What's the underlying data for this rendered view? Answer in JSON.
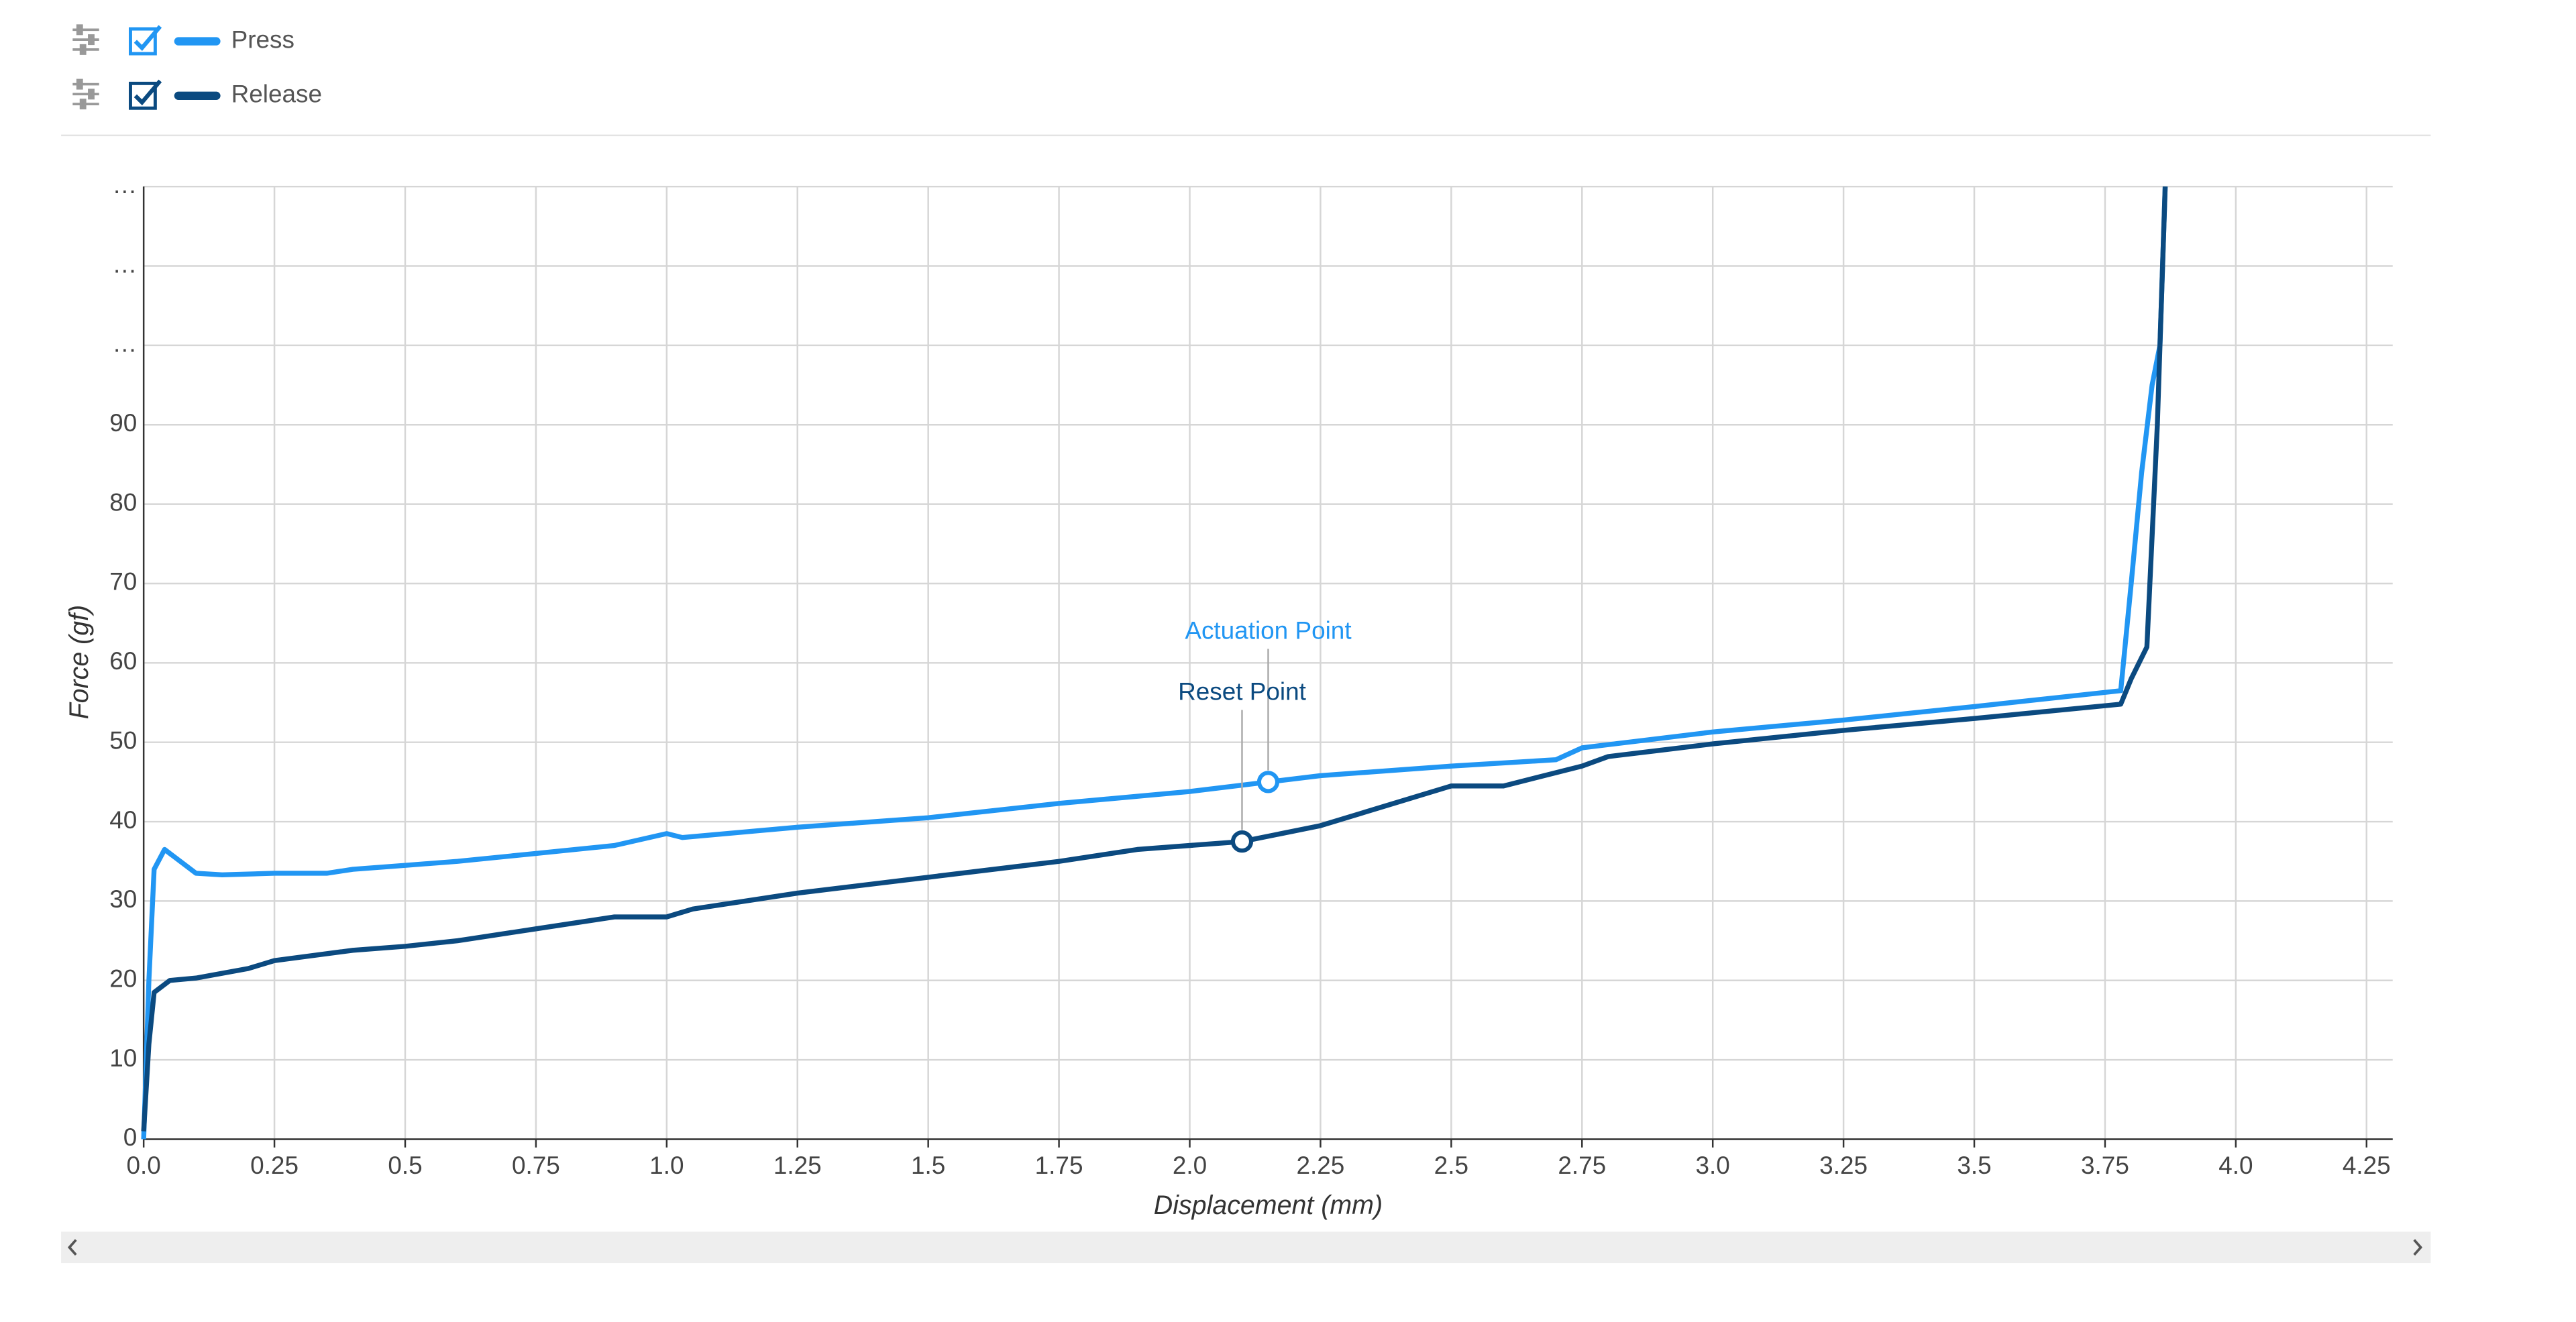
{
  "chart_data": {
    "type": "line",
    "x_label": "Displacement (mm)",
    "y_label": "Force (gf)",
    "xlim": [
      0,
      4.3
    ],
    "ylim": [
      0,
      120
    ],
    "xticks": [
      {
        "value": 0,
        "label": "0.0"
      },
      0.25,
      0.5,
      0.75,
      {
        "value": 1,
        "label": "1.0"
      },
      1.25,
      1.5,
      1.75,
      {
        "value": 2,
        "label": "2.0"
      },
      2.25,
      2.5,
      2.75,
      {
        "value": 3,
        "label": "3.0"
      },
      3.25,
      3.5,
      3.75,
      {
        "value": 4,
        "label": "4.0"
      },
      4.25
    ],
    "yticks": [
      0,
      10,
      20,
      30,
      40,
      50,
      60,
      70,
      80,
      90,
      {
        "value": 100,
        "label": "…"
      },
      {
        "value": 110,
        "label": "…"
      },
      {
        "value": 120,
        "label": "…"
      }
    ],
    "grid": true,
    "series": [
      {
        "name": "Press",
        "color": "#2196f3",
        "x": [
          0,
          0.01,
          0.02,
          0.04,
          0.07,
          0.1,
          0.15,
          0.25,
          0.35,
          0.4,
          0.5,
          0.6,
          0.75,
          0.9,
          1.0,
          1.03,
          1.25,
          1.5,
          1.75,
          2.0,
          2.15,
          2.25,
          2.5,
          2.7,
          2.75,
          3.0,
          3.25,
          3.5,
          3.78,
          3.8,
          3.82,
          3.84,
          3.855,
          3.865
        ],
        "values": [
          0,
          20,
          34,
          36.5,
          35,
          33.5,
          33.3,
          33.5,
          33.5,
          34,
          34.5,
          35,
          36,
          37,
          38.5,
          38,
          39.3,
          40.5,
          42.3,
          43.8,
          45,
          45.8,
          47,
          47.8,
          49.3,
          51.3,
          52.8,
          54.5,
          56.5,
          70,
          84,
          95,
          100,
          120
        ]
      },
      {
        "name": "Release",
        "color": "#0b4a80",
        "x": [
          0,
          0.01,
          0.02,
          0.05,
          0.1,
          0.2,
          0.25,
          0.4,
          0.5,
          0.6,
          0.75,
          0.9,
          1.0,
          1.05,
          1.25,
          1.5,
          1.75,
          1.9,
          2.1,
          2.25,
          2.4,
          2.5,
          2.6,
          2.75,
          2.8,
          2.9,
          3.0,
          3.25,
          3.5,
          3.78,
          3.8,
          3.83,
          3.85,
          3.865
        ],
        "values": [
          1,
          12,
          18.5,
          20,
          20.3,
          21.5,
          22.5,
          23.8,
          24.3,
          25,
          26.5,
          28,
          28,
          29,
          31,
          33,
          35,
          36.5,
          37.5,
          39.5,
          42.5,
          44.5,
          44.5,
          47,
          48.2,
          49,
          49.8,
          51.5,
          53,
          54.8,
          58,
          62,
          90,
          120
        ]
      }
    ],
    "annotations": [
      {
        "text": "Actuation Point",
        "x": 2.15,
        "y": 45,
        "series": 0
      },
      {
        "text": "Reset Point",
        "x": 2.1,
        "y": 37.5,
        "series": 1
      }
    ]
  }
}
